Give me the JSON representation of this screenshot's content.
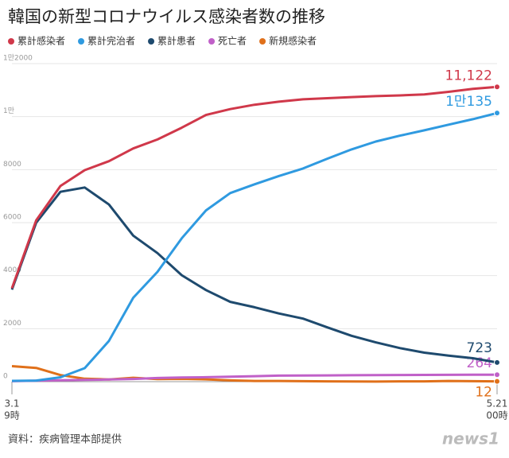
{
  "chart_data": {
    "type": "line",
    "title": "韓国の新型コロナウイルス感染者数の推移",
    "source": "資料：疾病管理本部提供",
    "logo": "news1",
    "categories": [
      "3.1",
      null,
      null,
      null,
      null,
      null,
      null,
      null,
      null,
      null,
      null,
      null,
      null,
      null,
      null,
      null,
      null,
      null,
      null,
      null,
      "5.21"
    ],
    "x_sublabels": [
      "9時",
      null,
      null,
      null,
      null,
      null,
      null,
      null,
      null,
      null,
      null,
      null,
      null,
      null,
      null,
      null,
      null,
      null,
      null,
      null,
      "00時"
    ],
    "ylim": [
      0,
      12000
    ],
    "yticks": [
      0,
      2000,
      4000,
      6000,
      8000,
      {
        "value": 10000,
        "label": "1만"
      },
      {
        "value": 12000,
        "label": "1만2000"
      }
    ],
    "grid": true,
    "series": [
      {
        "name": "累計感染者",
        "color": "#d0384a",
        "values": [
          3526,
          6088,
          7382,
          7979,
          8320,
          8799,
          9137,
          9583,
          10062,
          10284,
          10450,
          10564,
          10653,
          10694,
          10738,
          10774,
          10801,
          10840,
          10936,
          11050,
          11122
        ],
        "value_labels": [
          null,
          null,
          null,
          null,
          null,
          null,
          null,
          null,
          null,
          null,
          null,
          null,
          null,
          null,
          null,
          null,
          null,
          null,
          null,
          null,
          "11,122"
        ]
      },
      {
        "name": "累計完治者",
        "color": "#2f9ae0",
        "values": [
          30,
          41,
          166,
          510,
          1540,
          3166,
          4144,
          5408,
          6463,
          7117,
          7447,
          7757,
          8042,
          8411,
          8764,
          9059,
          9283,
          9484,
          9695,
          9904,
          10135
        ],
        "value_labels": [
          null,
          null,
          null,
          null,
          null,
          null,
          null,
          null,
          null,
          null,
          null,
          null,
          null,
          null,
          null,
          null,
          null,
          null,
          null,
          null,
          "1만135"
        ]
      },
      {
        "name": "累計患者",
        "color": "#1e4a6e",
        "values": [
          3470,
          5998,
          7165,
          7326,
          6683,
          5511,
          4851,
          4016,
          3455,
          3013,
          2808,
          2573,
          2380,
          2049,
          1731,
          1483,
          1266,
          1095,
          985,
          886,
          723
        ]
      },
      {
        "name": "死亡者",
        "color": "#c060c8",
        "values": [
          17,
          35,
          51,
          67,
          81,
          102,
          139,
          158,
          169,
          186,
          208,
          229,
          232,
          236,
          242,
          247,
          252,
          256,
          258,
          262,
          264
        ]
      },
      {
        "name": "新規感染者",
        "color": "#e0701a",
        "values": [
          586,
          518,
          248,
          110,
          84,
          147,
          100,
          105,
          86,
          47,
          27,
          27,
          18,
          11,
          10,
          4,
          13,
          12,
          26,
          19,
          12
        ]
      }
    ]
  }
}
